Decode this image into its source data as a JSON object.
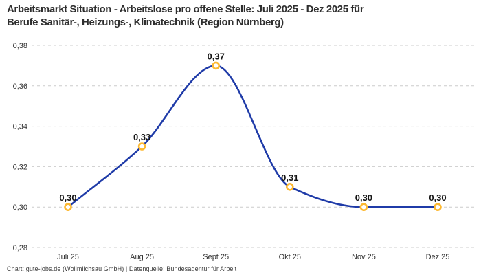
{
  "footer": {
    "attribution": "Chart: gute-jobs.de (Wollmilchsau GmbH) | Datenquelle: Bundesagentur für Arbeit"
  },
  "chart_data": {
    "type": "line",
    "title": "Arbeitsmarkt Situation - Arbeitslose pro offene Stelle: Juli 2025 - Dez 2025 für Berufe Sanitär-, Heizungs-, Klimatechnik (Region Nürnberg)",
    "title_lines": [
      "Arbeitsmarkt Situation - Arbeitslose pro offene Stelle: Juli 2025 - Dez 2025 für",
      "Berufe Sanitär-, Heizungs-, Klimatechnik (Region Nürnberg)"
    ],
    "categories": [
      "Juli 25",
      "Aug 25",
      "Sept 25",
      "Okt 25",
      "Nov 25",
      "Dez 25"
    ],
    "values": [
      0.3,
      0.33,
      0.37,
      0.31,
      0.3,
      0.3
    ],
    "point_labels": [
      "0,30",
      "0,33",
      "0,37",
      "0,31",
      "0,30",
      "0,30"
    ],
    "y_ticks": {
      "values": [
        0.28,
        0.3,
        0.32,
        0.34,
        0.36,
        0.38
      ],
      "labels": [
        "0,28",
        "0,30",
        "0,32",
        "0,34",
        "0,36",
        "0,38"
      ]
    },
    "ylim": [
      0.28,
      0.38
    ],
    "xlabel": "",
    "ylabel": "",
    "legend": "none",
    "grid": "horizontal-dashed",
    "interpolation": "monotone-smooth",
    "colors": {
      "line": "#1f3ba8",
      "marker_ring": "#fdb932",
      "marker_fill": "#ffffff",
      "grid": "#cccccc",
      "axis_text": "#333333",
      "point_label": "#141414"
    }
  }
}
